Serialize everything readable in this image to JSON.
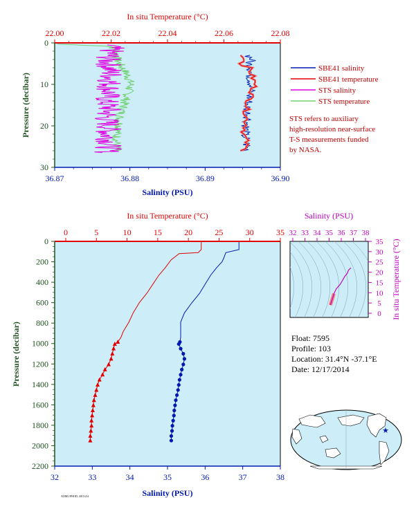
{
  "colors": {
    "plot_bg": "#cdeef8",
    "temperature": "#e00000",
    "salinity": "#0018b0",
    "sts_salinity": "#e000e0",
    "sts_temperature": "#70d070",
    "sbe_temp_thick": "#f08080",
    "pressure_label": "#205020",
    "ts_purple": "#c000c0"
  },
  "top_panel": {
    "x_top_label": "In situ Temperature (°C)",
    "x_bottom_label": "Salinity (PSU)",
    "y_label": "Pressure (decibar)",
    "temp_ticks": [
      "22.00",
      "22.02",
      "22.04",
      "22.06",
      "22.08"
    ],
    "sal_ticks": [
      "36.87",
      "36.88",
      "36.89",
      "36.90"
    ],
    "p_ticks": [
      "0",
      "10",
      "20",
      "30"
    ],
    "legend": [
      "SBE41 salinity",
      "SBE41 temperature",
      "STS salinity",
      "STS temperature"
    ],
    "note": [
      "STS refers to auxiliary",
      "high-resolution near-surface",
      "T-S measurements funded",
      "by NASA."
    ]
  },
  "main_panel": {
    "x_top_label": "In situ Temperature (°C)",
    "x_bottom_label": "Salinity (PSU)",
    "y_label": "Pressure (decibar)",
    "temp_ticks": [
      "0",
      "5",
      "10",
      "15",
      "20",
      "25",
      "30",
      "35"
    ],
    "sal_ticks": [
      "32",
      "33",
      "34",
      "35",
      "36",
      "37",
      "38"
    ],
    "p_ticks": [
      "0",
      "200",
      "400",
      "600",
      "800",
      "1000",
      "1200",
      "1400",
      "1600",
      "1800",
      "2000",
      "2200"
    ]
  },
  "ts_panel": {
    "x_label": "Salinity (PSU)",
    "y_label": "In situ Temperature (°C)",
    "sal_ticks": [
      "32",
      "33",
      "34",
      "35",
      "36",
      "37",
      "38"
    ],
    "temp_ticks": [
      "0",
      "5",
      "10",
      "15",
      "20",
      "25",
      "30",
      "35"
    ]
  },
  "info": {
    "float": "Float:  7595",
    "profile": "Profile:  103",
    "location": "Location:  31.4°N  -37.1°E",
    "date": "Date:  12/17/2014"
  },
  "chart_data": [
    {
      "type": "line",
      "panel": "main",
      "y_axis": "Pressure (decibar)",
      "ylim": [
        2200,
        0
      ],
      "series": [
        {
          "name": "temperature",
          "axis": "In situ Temperature (°C)",
          "xlim": [
            0,
            35
          ],
          "points": [
            [
              22.1,
              0
            ],
            [
              22.1,
              80
            ],
            [
              21.6,
              110
            ],
            [
              18.5,
              120
            ],
            [
              17.2,
              180
            ],
            [
              16.2,
              260
            ],
            [
              15.2,
              330
            ],
            [
              14.2,
              420
            ],
            [
              13.2,
              510
            ],
            [
              12.0,
              600
            ],
            [
              11.0,
              700
            ],
            [
              10.3,
              790
            ],
            [
              9.4,
              880
            ],
            [
              9.0,
              940
            ],
            [
              8.5,
              985
            ],
            [
              8.0,
              1005
            ],
            [
              7.8,
              1050
            ],
            [
              7.6,
              1100
            ],
            [
              7.4,
              1150
            ],
            [
              7.0,
              1205
            ],
            [
              6.4,
              1255
            ],
            [
              6.0,
              1305
            ],
            [
              5.5,
              1355
            ],
            [
              5.2,
              1405
            ],
            [
              5.0,
              1455
            ],
            [
              4.8,
              1505
            ],
            [
              4.6,
              1555
            ],
            [
              4.5,
              1605
            ],
            [
              4.4,
              1655
            ],
            [
              4.3,
              1705
            ],
            [
              4.2,
              1755
            ],
            [
              4.2,
              1805
            ],
            [
              4.1,
              1855
            ],
            [
              4.0,
              1905
            ],
            [
              4.0,
              1950
            ]
          ]
        },
        {
          "name": "salinity",
          "axis": "Salinity (PSU)",
          "xlim": [
            32,
            38
          ],
          "points": [
            [
              36.9,
              0
            ],
            [
              36.9,
              80
            ],
            [
              36.55,
              110
            ],
            [
              36.5,
              160
            ],
            [
              36.45,
              200
            ],
            [
              36.3,
              260
            ],
            [
              36.15,
              330
            ],
            [
              36.0,
              420
            ],
            [
              35.85,
              510
            ],
            [
              35.65,
              600
            ],
            [
              35.45,
              700
            ],
            [
              35.35,
              790
            ],
            [
              35.35,
              880
            ],
            [
              35.35,
              940
            ],
            [
              35.33,
              985
            ],
            [
              35.3,
              1005
            ],
            [
              35.35,
              1050
            ],
            [
              35.42,
              1100
            ],
            [
              35.45,
              1150
            ],
            [
              35.42,
              1205
            ],
            [
              35.38,
              1255
            ],
            [
              35.35,
              1305
            ],
            [
              35.32,
              1355
            ],
            [
              35.3,
              1405
            ],
            [
              35.28,
              1455
            ],
            [
              35.25,
              1505
            ],
            [
              35.22,
              1555
            ],
            [
              35.2,
              1605
            ],
            [
              35.18,
              1655
            ],
            [
              35.17,
              1705
            ],
            [
              35.15,
              1755
            ],
            [
              35.13,
              1805
            ],
            [
              35.12,
              1855
            ],
            [
              35.1,
              1905
            ],
            [
              35.1,
              1950
            ]
          ]
        }
      ]
    },
    {
      "type": "line",
      "panel": "top",
      "y_axis": "Pressure (decibar)",
      "ylim": [
        30,
        0
      ],
      "series": [
        {
          "name": "SBE41 salinity",
          "axis": "Salinity (PSU)",
          "xlim": [
            36.87,
            36.9
          ],
          "points": [
            [
              36.8958,
              3
            ],
            [
              36.8962,
              4
            ],
            [
              36.8958,
              5
            ],
            [
              36.8962,
              6
            ],
            [
              36.896,
              8
            ],
            [
              36.8962,
              10
            ],
            [
              36.896,
              12
            ],
            [
              36.8958,
              14
            ],
            [
              36.8955,
              16
            ],
            [
              36.8958,
              18
            ],
            [
              36.8955,
              20
            ],
            [
              36.8952,
              22
            ],
            [
              36.8955,
              24
            ],
            [
              36.8955,
              26
            ]
          ]
        },
        {
          "name": "SBE41 temperature",
          "axis": "In situ Temperature (°C)",
          "xlim": [
            22.0,
            22.08
          ],
          "points": [
            [
              22.066,
              3
            ],
            [
              22.068,
              4
            ],
            [
              22.066,
              5
            ],
            [
              22.069,
              6
            ],
            [
              22.07,
              8
            ],
            [
              22.071,
              10
            ],
            [
              22.07,
              12
            ],
            [
              22.069,
              14
            ],
            [
              22.068,
              16
            ],
            [
              22.068,
              18
            ],
            [
              22.068,
              20
            ],
            [
              22.067,
              22
            ],
            [
              22.068,
              24
            ],
            [
              22.067,
              26
            ]
          ]
        },
        {
          "name": "STS salinity",
          "axis": "Salinity (PSU)",
          "xlim": [
            36.87,
            36.9
          ],
          "points": [
            [
              36.877,
              0.5
            ],
            [
              36.8775,
              1.2
            ],
            [
              36.8775,
              2
            ],
            [
              36.877,
              4
            ],
            [
              36.8773,
              6
            ],
            [
              36.8775,
              8
            ],
            [
              36.8773,
              10
            ],
            [
              36.8772,
              12
            ],
            [
              36.8768,
              14
            ],
            [
              36.8772,
              16
            ],
            [
              36.8768,
              18
            ],
            [
              36.8772,
              20
            ],
            [
              36.877,
              22
            ],
            [
              36.8773,
              24
            ],
            [
              36.877,
              26.5
            ]
          ]
        },
        {
          "name": "STS temperature",
          "axis": "In situ Temperature (°C)",
          "xlim": [
            22.0,
            22.08
          ],
          "points": [
            [
              22.001,
              0.3
            ],
            [
              22.02,
              0.8
            ],
            [
              22.022,
              2
            ],
            [
              22.022,
              4
            ],
            [
              22.024,
              6
            ],
            [
              22.026,
              8
            ],
            [
              22.027,
              10
            ],
            [
              22.026,
              12
            ],
            [
              22.025,
              14
            ],
            [
              22.024,
              16
            ],
            [
              22.023,
              18
            ],
            [
              22.023,
              20
            ],
            [
              22.022,
              22
            ],
            [
              22.022,
              24
            ],
            [
              22.022,
              26
            ]
          ]
        }
      ]
    },
    {
      "type": "line",
      "panel": "ts",
      "x_axis": "Salinity (PSU)",
      "y_axis": "In situ Temperature (°C)",
      "xlim": [
        32,
        38
      ],
      "ylim": [
        0,
        35
      ],
      "series": [
        {
          "name": "T-S",
          "points": [
            [
              35.1,
              4
            ],
            [
              35.3,
              7.6
            ],
            [
              35.4,
              9.6
            ],
            [
              35.6,
              12
            ],
            [
              35.9,
              14
            ],
            [
              36.1,
              16
            ],
            [
              36.3,
              18
            ],
            [
              36.5,
              19.5
            ],
            [
              36.6,
              21
            ],
            [
              36.8,
              22.1
            ]
          ]
        }
      ]
    }
  ]
}
